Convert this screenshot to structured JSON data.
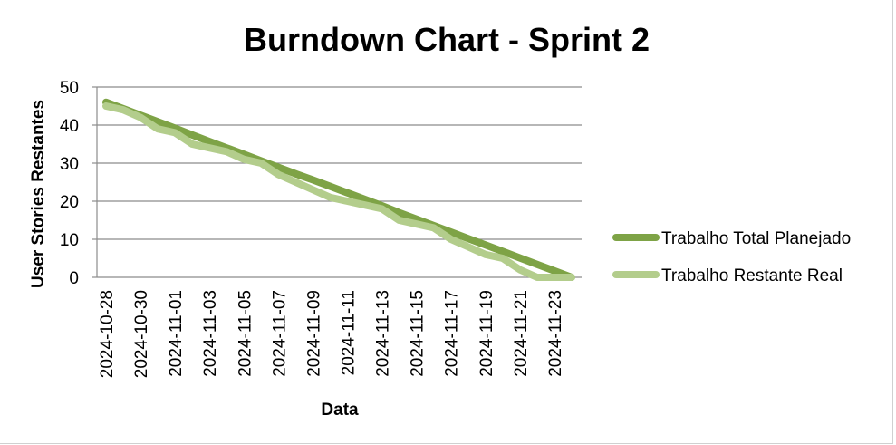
{
  "chart_data": {
    "type": "line",
    "title": "Burndown Chart - Sprint 2",
    "xlabel": "Data",
    "ylabel": "User Stories Restantes",
    "ylim": [
      0,
      50
    ],
    "yticks": [
      0,
      10,
      20,
      30,
      40,
      50
    ],
    "grid": true,
    "legend_position": "right",
    "x": [
      "2024-10-28",
      "2024-10-29",
      "2024-10-30",
      "2024-10-31",
      "2024-11-01",
      "2024-11-02",
      "2024-11-03",
      "2024-11-04",
      "2024-11-05",
      "2024-11-06",
      "2024-11-07",
      "2024-11-08",
      "2024-11-09",
      "2024-11-10",
      "2024-11-11",
      "2024-11-12",
      "2024-11-13",
      "2024-11-14",
      "2024-11-15",
      "2024-11-16",
      "2024-11-17",
      "2024-11-18",
      "2024-11-19",
      "2024-11-20",
      "2024-11-21",
      "2024-11-22",
      "2024-11-23",
      "2024-11-24"
    ],
    "xtick_labels": [
      "2024-10-28",
      "2024-10-30",
      "2024-11-01",
      "2024-11-03",
      "2024-11-05",
      "2024-11-07",
      "2024-11-09",
      "2024-11-11",
      "2024-11-13",
      "2024-11-15",
      "2024-11-17",
      "2024-11-19",
      "2024-11-21",
      "2024-11-23"
    ],
    "series": [
      {
        "name": "Trabalho Total Planejado",
        "color": "#7ea346",
        "values": [
          46,
          44.3,
          42.6,
          40.9,
          39.2,
          37.4,
          35.7,
          34,
          32.3,
          30.6,
          28.9,
          27.2,
          25.6,
          23.9,
          22.2,
          20.5,
          18.8,
          17,
          15.3,
          13.6,
          11.9,
          10.2,
          8.5,
          6.8,
          5.1,
          3.4,
          1.7,
          0
        ]
      },
      {
        "name": "Trabalho Restante Real",
        "color": "#b3cd8c",
        "values": [
          45,
          44,
          42,
          39,
          38,
          35,
          34,
          33,
          31,
          30,
          27,
          25,
          23,
          21,
          20,
          19,
          18,
          15,
          14,
          13,
          10,
          8,
          6,
          5,
          2,
          0,
          0,
          0
        ]
      }
    ]
  }
}
